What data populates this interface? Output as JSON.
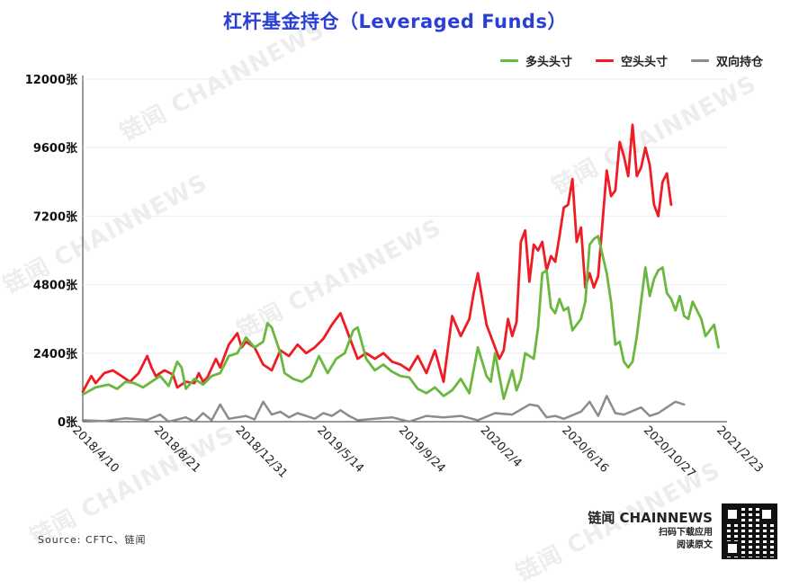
{
  "title": "杠杆基金持仓（Leveraged Funds）",
  "legend": [
    {
      "label": "多头头寸",
      "color": "#6ab83f"
    },
    {
      "label": "空头头寸",
      "color": "#ee1c24"
    },
    {
      "label": "双向持仓",
      "color": "#8c8c8c"
    }
  ],
  "source": "Source: CFTC、链闻",
  "brand": {
    "name": "链闻 CHAINNEWS",
    "line1": "扫码下载应用",
    "line2": "阅读原文"
  },
  "watermark": "链闻 CHAINNEWS",
  "chart_data": {
    "type": "line",
    "ylim": [
      0,
      12000
    ],
    "yticks": [
      0,
      2400,
      4800,
      7200,
      9600,
      12000
    ],
    "ytick_labels": [
      "0张",
      "2400张",
      "4800张",
      "7200张",
      "9600张",
      "12000张"
    ],
    "xtick_labels": [
      "2018/4/10",
      "2018/8/21",
      "2018/12/31",
      "2019/5/14",
      "2019/9/24",
      "2020/2/4",
      "2020/6/16",
      "2020/10/27",
      "2021/2/23"
    ],
    "x_count": 150,
    "xtick_indices": [
      0,
      19,
      38,
      57,
      76,
      95,
      114,
      133,
      150
    ],
    "series": [
      {
        "name": "多头头寸",
        "color": "#6ab83f",
        "keypoints": [
          [
            0,
            950
          ],
          [
            3,
            1200
          ],
          [
            6,
            1300
          ],
          [
            8,
            1150
          ],
          [
            10,
            1400
          ],
          [
            12,
            1350
          ],
          [
            14,
            1200
          ],
          [
            16,
            1400
          ],
          [
            18,
            1600
          ],
          [
            20,
            1250
          ],
          [
            22,
            2100
          ],
          [
            23,
            1900
          ],
          [
            24,
            1150
          ],
          [
            26,
            1500
          ],
          [
            28,
            1300
          ],
          [
            30,
            1600
          ],
          [
            32,
            1700
          ],
          [
            34,
            2300
          ],
          [
            36,
            2400
          ],
          [
            38,
            2950
          ],
          [
            40,
            2600
          ],
          [
            42,
            2800
          ],
          [
            43,
            3450
          ],
          [
            44,
            3300
          ],
          [
            46,
            2400
          ],
          [
            47,
            1700
          ],
          [
            49,
            1500
          ],
          [
            51,
            1400
          ],
          [
            53,
            1600
          ],
          [
            55,
            2300
          ],
          [
            57,
            1700
          ],
          [
            59,
            2200
          ],
          [
            61,
            2400
          ],
          [
            63,
            3200
          ],
          [
            64,
            3300
          ],
          [
            66,
            2200
          ],
          [
            68,
            1800
          ],
          [
            70,
            2000
          ],
          [
            72,
            1750
          ],
          [
            74,
            1600
          ],
          [
            76,
            1550
          ],
          [
            78,
            1150
          ],
          [
            80,
            1000
          ],
          [
            82,
            1200
          ],
          [
            84,
            900
          ],
          [
            86,
            1100
          ],
          [
            88,
            1500
          ],
          [
            90,
            1000
          ],
          [
            92,
            2600
          ],
          [
            94,
            1600
          ],
          [
            95,
            1400
          ],
          [
            96,
            2400
          ],
          [
            98,
            800
          ],
          [
            100,
            1800
          ],
          [
            101,
            1100
          ],
          [
            102,
            1500
          ],
          [
            103,
            2400
          ],
          [
            105,
            2200
          ],
          [
            106,
            3300
          ],
          [
            107,
            5200
          ],
          [
            108,
            5300
          ],
          [
            109,
            4000
          ],
          [
            110,
            3800
          ],
          [
            111,
            4300
          ],
          [
            112,
            3900
          ],
          [
            113,
            4000
          ],
          [
            114,
            3200
          ],
          [
            116,
            3600
          ],
          [
            117,
            4200
          ],
          [
            118,
            6200
          ],
          [
            119,
            6400
          ],
          [
            120,
            6500
          ],
          [
            122,
            5200
          ],
          [
            123,
            4200
          ],
          [
            124,
            2700
          ],
          [
            125,
            2800
          ],
          [
            126,
            2100
          ],
          [
            127,
            1900
          ],
          [
            128,
            2100
          ],
          [
            129,
            3000
          ],
          [
            130,
            4200
          ],
          [
            131,
            5400
          ],
          [
            132,
            4400
          ],
          [
            133,
            5000
          ],
          [
            134,
            5300
          ],
          [
            135,
            5400
          ],
          [
            136,
            4500
          ],
          [
            137,
            4300
          ],
          [
            138,
            3900
          ],
          [
            139,
            4400
          ],
          [
            140,
            3700
          ],
          [
            141,
            3600
          ],
          [
            142,
            4200
          ],
          [
            143,
            3900
          ],
          [
            144,
            3600
          ],
          [
            145,
            3000
          ],
          [
            147,
            3400
          ],
          [
            148,
            2600
          ]
        ]
      },
      {
        "name": "空头头寸",
        "color": "#ee1c24",
        "keypoints": [
          [
            0,
            1050
          ],
          [
            2,
            1600
          ],
          [
            3,
            1350
          ],
          [
            5,
            1700
          ],
          [
            7,
            1800
          ],
          [
            9,
            1600
          ],
          [
            11,
            1400
          ],
          [
            13,
            1700
          ],
          [
            15,
            2300
          ],
          [
            16,
            1900
          ],
          [
            17,
            1600
          ],
          [
            19,
            1800
          ],
          [
            21,
            1650
          ],
          [
            22,
            1200
          ],
          [
            24,
            1400
          ],
          [
            26,
            1350
          ],
          [
            27,
            1700
          ],
          [
            28,
            1400
          ],
          [
            29,
            1550
          ],
          [
            31,
            2200
          ],
          [
            32,
            1900
          ],
          [
            34,
            2700
          ],
          [
            36,
            3100
          ],
          [
            37,
            2600
          ],
          [
            38,
            2800
          ],
          [
            40,
            2600
          ],
          [
            42,
            2000
          ],
          [
            44,
            1800
          ],
          [
            46,
            2500
          ],
          [
            48,
            2300
          ],
          [
            50,
            2700
          ],
          [
            52,
            2400
          ],
          [
            54,
            2600
          ],
          [
            56,
            2900
          ],
          [
            58,
            3400
          ],
          [
            60,
            3800
          ],
          [
            62,
            3000
          ],
          [
            64,
            2200
          ],
          [
            66,
            2400
          ],
          [
            68,
            2200
          ],
          [
            70,
            2400
          ],
          [
            72,
            2100
          ],
          [
            74,
            2000
          ],
          [
            76,
            1800
          ],
          [
            78,
            2300
          ],
          [
            80,
            1700
          ],
          [
            82,
            2500
          ],
          [
            84,
            1400
          ],
          [
            86,
            3700
          ],
          [
            88,
            3000
          ],
          [
            90,
            3600
          ],
          [
            91,
            4500
          ],
          [
            92,
            5200
          ],
          [
            93,
            4300
          ],
          [
            94,
            3400
          ],
          [
            95,
            3000
          ],
          [
            96,
            2600
          ],
          [
            97,
            2200
          ],
          [
            98,
            2500
          ],
          [
            99,
            3600
          ],
          [
            100,
            3000
          ],
          [
            101,
            3500
          ],
          [
            102,
            6300
          ],
          [
            103,
            6700
          ],
          [
            104,
            4900
          ],
          [
            105,
            6200
          ],
          [
            106,
            6000
          ],
          [
            107,
            6300
          ],
          [
            108,
            5300
          ],
          [
            109,
            5800
          ],
          [
            110,
            5600
          ],
          [
            111,
            6500
          ],
          [
            112,
            7500
          ],
          [
            113,
            7600
          ],
          [
            114,
            8500
          ],
          [
            115,
            6300
          ],
          [
            116,
            6800
          ],
          [
            117,
            4700
          ],
          [
            118,
            5200
          ],
          [
            119,
            4700
          ],
          [
            120,
            5100
          ],
          [
            122,
            8800
          ],
          [
            123,
            7900
          ],
          [
            124,
            8100
          ],
          [
            125,
            9800
          ],
          [
            126,
            9300
          ],
          [
            127,
            8600
          ],
          [
            128,
            10400
          ],
          [
            129,
            8600
          ],
          [
            130,
            8900
          ],
          [
            131,
            9600
          ],
          [
            132,
            9000
          ],
          [
            133,
            7600
          ],
          [
            134,
            7200
          ],
          [
            135,
            8400
          ],
          [
            136,
            8700
          ],
          [
            137,
            7600
          ]
        ]
      },
      {
        "name": "双向持仓",
        "color": "#8c8c8c",
        "keypoints": [
          [
            0,
            50
          ],
          [
            5,
            20
          ],
          [
            10,
            120
          ],
          [
            15,
            60
          ],
          [
            18,
            250
          ],
          [
            20,
            0
          ],
          [
            24,
            150
          ],
          [
            26,
            0
          ],
          [
            28,
            300
          ],
          [
            30,
            50
          ],
          [
            32,
            600
          ],
          [
            34,
            100
          ],
          [
            38,
            200
          ],
          [
            40,
            80
          ],
          [
            42,
            700
          ],
          [
            44,
            250
          ],
          [
            46,
            350
          ],
          [
            48,
            150
          ],
          [
            50,
            300
          ],
          [
            52,
            200
          ],
          [
            54,
            100
          ],
          [
            56,
            300
          ],
          [
            58,
            200
          ],
          [
            60,
            400
          ],
          [
            62,
            200
          ],
          [
            64,
            50
          ],
          [
            68,
            100
          ],
          [
            72,
            150
          ],
          [
            76,
            0
          ],
          [
            80,
            200
          ],
          [
            84,
            150
          ],
          [
            88,
            200
          ],
          [
            92,
            50
          ],
          [
            96,
            300
          ],
          [
            100,
            250
          ],
          [
            104,
            600
          ],
          [
            106,
            550
          ],
          [
            108,
            150
          ],
          [
            110,
            200
          ],
          [
            112,
            100
          ],
          [
            116,
            350
          ],
          [
            118,
            700
          ],
          [
            120,
            200
          ],
          [
            122,
            900
          ],
          [
            124,
            300
          ],
          [
            126,
            250
          ],
          [
            130,
            500
          ],
          [
            132,
            200
          ],
          [
            134,
            300
          ],
          [
            136,
            500
          ],
          [
            138,
            700
          ],
          [
            140,
            600
          ]
        ]
      }
    ]
  }
}
